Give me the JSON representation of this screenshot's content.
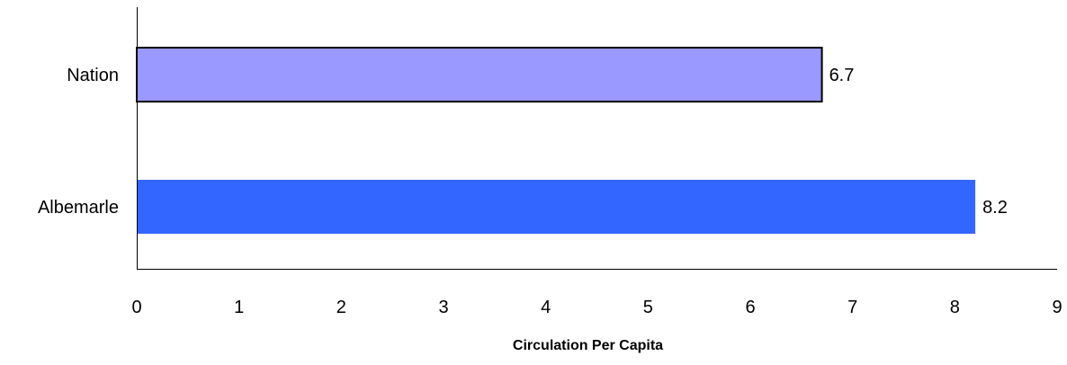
{
  "chart_data": {
    "type": "bar",
    "orientation": "horizontal",
    "categories": [
      "Nation",
      "Albemarle"
    ],
    "values": [
      6.7,
      8.2
    ],
    "data_labels": [
      "6.7",
      "8.2"
    ],
    "colors": [
      "#9999ff",
      "#3366ff"
    ],
    "title": "",
    "xlabel": "Circulation Per Capita",
    "ylabel": "",
    "xlim": [
      0,
      9
    ],
    "x_ticks": [
      0,
      1,
      2,
      3,
      4,
      5,
      6,
      7,
      8,
      9
    ],
    "grid": false,
    "legend": "none"
  }
}
